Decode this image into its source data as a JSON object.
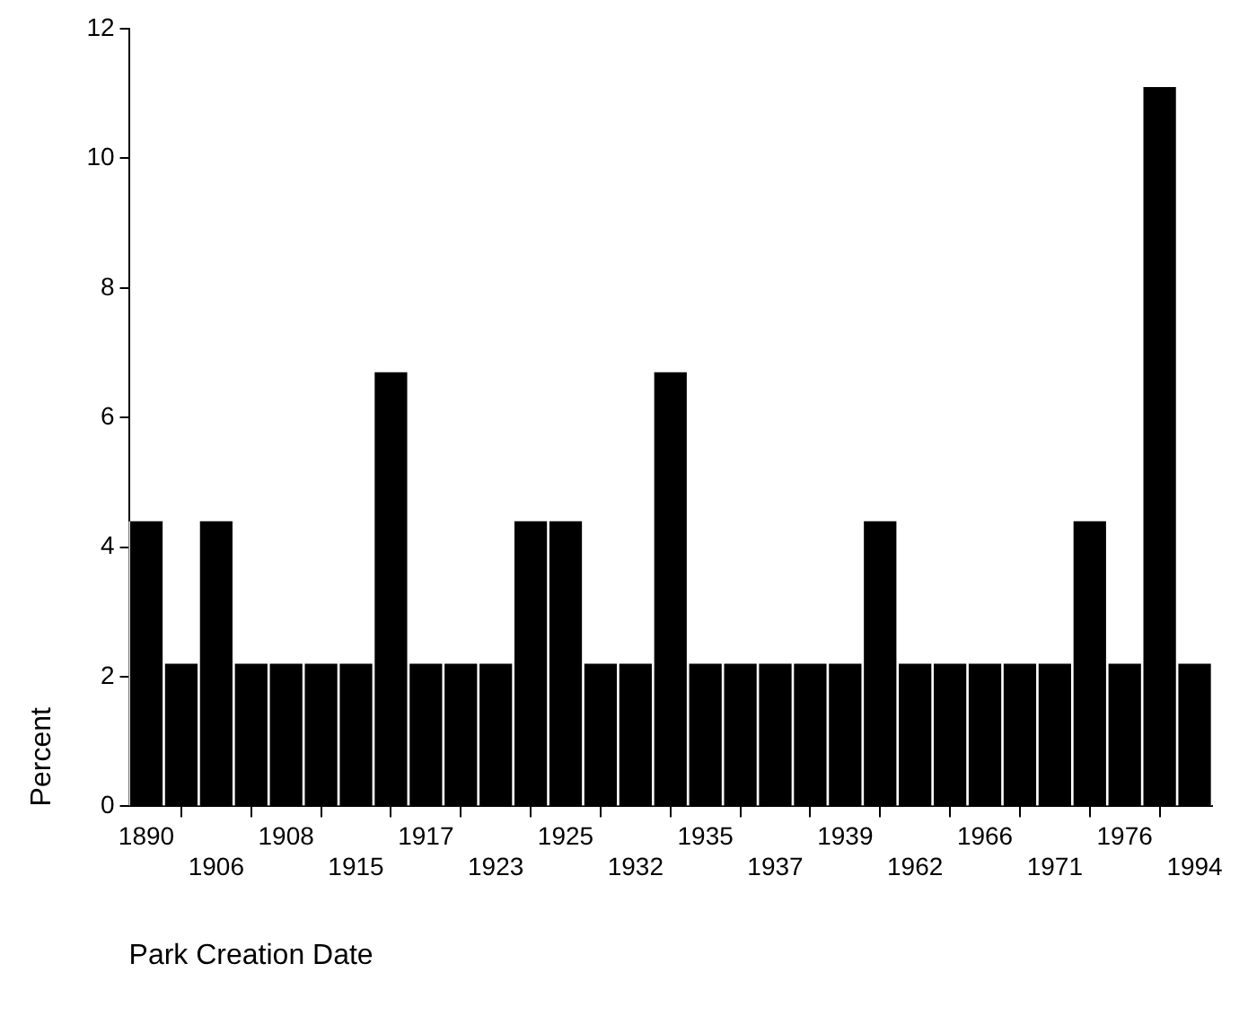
{
  "chart_data": {
    "type": "bar",
    "xlabel": "Park Creation Date",
    "ylabel": "Percent",
    "categories": [
      "1890",
      null,
      "1906",
      null,
      "1908",
      null,
      "1915",
      null,
      "1917",
      null,
      "1923",
      null,
      "1925",
      null,
      "1932",
      null,
      "1935",
      null,
      "1937",
      null,
      "1939",
      null,
      "1962",
      null,
      "1966",
      null,
      "1971",
      null,
      "1976",
      null,
      "1994"
    ],
    "values": [
      4.4,
      2.2,
      4.4,
      2.2,
      2.2,
      2.2,
      2.2,
      6.7,
      2.2,
      2.2,
      2.2,
      4.4,
      4.4,
      2.2,
      2.2,
      6.7,
      2.2,
      2.2,
      2.2,
      2.2,
      2.2,
      4.4,
      2.2,
      2.2,
      2.2,
      2.2,
      2.2,
      4.4,
      2.2,
      11.1,
      2.2
    ],
    "color": "#000000",
    "ylim": [
      0,
      12
    ],
    "yticks": [
      0,
      2,
      4,
      6,
      8,
      10,
      12
    ],
    "grid": false,
    "legend": false
  }
}
